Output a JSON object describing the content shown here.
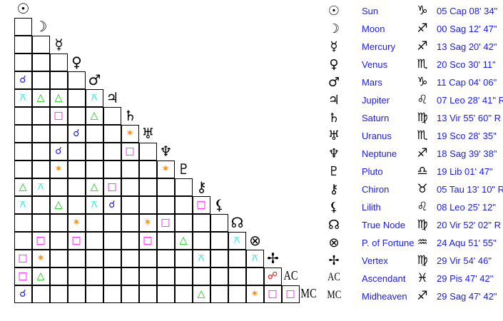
{
  "planets": [
    {
      "glyph": "☉",
      "name": "Sun",
      "sign": "♑",
      "position": "05 Cap 08' 34\""
    },
    {
      "glyph": "☽",
      "name": "Moon",
      "sign": "♐",
      "position": "00 Sag 12' 47\""
    },
    {
      "glyph": "☿",
      "name": "Mercury",
      "sign": "♐",
      "position": "13 Sag 20' 42\""
    },
    {
      "glyph": "♀",
      "name": "Venus",
      "sign": "♏",
      "position": "20 Sco 30' 11\""
    },
    {
      "glyph": "♂",
      "name": "Mars",
      "sign": "♑",
      "position": "11 Cap 04' 06\""
    },
    {
      "glyph": "♃",
      "name": "Jupiter",
      "sign": "♌",
      "position": "07 Leo 28' 41\" R"
    },
    {
      "glyph": "♄",
      "name": "Saturn",
      "sign": "♍",
      "position": "13 Vir 55' 60\" R"
    },
    {
      "glyph": "♅",
      "name": "Uranus",
      "sign": "♏",
      "position": "19 Sco 28' 35\""
    },
    {
      "glyph": "♆",
      "name": "Neptune",
      "sign": "♐",
      "position": "18 Sag 39' 38\""
    },
    {
      "glyph": "♇",
      "name": "Pluto",
      "sign": "♎",
      "position": "19 Lib 01' 47\""
    },
    {
      "glyph": "⚷",
      "name": "Chiron",
      "sign": "♉",
      "position": "05 Tau 13' 10\" R"
    },
    {
      "glyph": "⚸",
      "name": "Lilith",
      "sign": "♌",
      "position": "08 Leo 25' 12\""
    },
    {
      "glyph": "☊",
      "name": "True Node",
      "sign": "♍",
      "position": "20 Vir 52' 02\" R"
    },
    {
      "glyph": "⊗",
      "name": "P. of Fortune",
      "sign": "♒",
      "position": "24 Aqu 51' 55\""
    },
    {
      "glyph": "✢",
      "name": "Vertex",
      "sign": "♍",
      "position": "29 Vir 54' 46\""
    },
    {
      "glyph": "AC",
      "name": "Ascendant",
      "sign": "♓",
      "position": "29 Pis 47' 42\""
    },
    {
      "glyph": "MC",
      "name": "Midheaven",
      "sign": "♐",
      "position": "29 Sag 47' 42\""
    }
  ],
  "aspect_types": {
    "conjunction": {
      "glyph": "☌",
      "color": "#1a1aee"
    },
    "quincunx": {
      "glyph": "⚻",
      "color": "#00e5e5"
    },
    "trine": {
      "glyph": "△",
      "color": "#00cc00"
    },
    "square": {
      "glyph": "□",
      "color": "#ff00ff"
    },
    "sextile": {
      "glyph": "✶",
      "color": "#ff8800"
    },
    "opposition": {
      "glyph": "☍",
      "color": "#ff0000"
    }
  },
  "aspects": [
    [
      "Mars",
      "Sun",
      "conjunction"
    ],
    [
      "Jupiter",
      "Sun",
      "quincunx"
    ],
    [
      "Jupiter",
      "Moon",
      "trine"
    ],
    [
      "Jupiter",
      "Mercury",
      "trine"
    ],
    [
      "Jupiter",
      "Mars",
      "quincunx"
    ],
    [
      "Saturn",
      "Mercury",
      "square"
    ],
    [
      "Saturn",
      "Mars",
      "trine"
    ],
    [
      "Uranus",
      "Venus",
      "conjunction"
    ],
    [
      "Uranus",
      "Saturn",
      "sextile"
    ],
    [
      "Neptune",
      "Mercury",
      "conjunction"
    ],
    [
      "Neptune",
      "Saturn",
      "square"
    ],
    [
      "Pluto",
      "Mercury",
      "sextile"
    ],
    [
      "Pluto",
      "Neptune",
      "sextile"
    ],
    [
      "Chiron",
      "Sun",
      "trine"
    ],
    [
      "Chiron",
      "Moon",
      "quincunx"
    ],
    [
      "Chiron",
      "Mars",
      "trine"
    ],
    [
      "Chiron",
      "Jupiter",
      "square"
    ],
    [
      "Lilith",
      "Sun",
      "quincunx"
    ],
    [
      "Lilith",
      "Mercury",
      "trine"
    ],
    [
      "Lilith",
      "Mars",
      "quincunx"
    ],
    [
      "Lilith",
      "Jupiter",
      "conjunction"
    ],
    [
      "Lilith",
      "Chiron",
      "square"
    ],
    [
      "True Node",
      "Venus",
      "sextile"
    ],
    [
      "True Node",
      "Uranus",
      "sextile"
    ],
    [
      "True Node",
      "Neptune",
      "square"
    ],
    [
      "P. of Fortune",
      "Moon",
      "square"
    ],
    [
      "P. of Fortune",
      "Venus",
      "square"
    ],
    [
      "P. of Fortune",
      "Uranus",
      "square"
    ],
    [
      "P. of Fortune",
      "Pluto",
      "trine"
    ],
    [
      "P. of Fortune",
      "True Node",
      "quincunx"
    ],
    [
      "Vertex",
      "Sun",
      "square"
    ],
    [
      "Vertex",
      "Moon",
      "sextile"
    ],
    [
      "Vertex",
      "Chiron",
      "quincunx"
    ],
    [
      "Vertex",
      "P. of Fortune",
      "quincunx"
    ],
    [
      "Ascendant",
      "Sun",
      "square"
    ],
    [
      "Ascendant",
      "Moon",
      "trine"
    ],
    [
      "Ascendant",
      "Vertex",
      "opposition"
    ],
    [
      "Midheaven",
      "Sun",
      "conjunction"
    ],
    [
      "Midheaven",
      "Chiron",
      "trine"
    ],
    [
      "Midheaven",
      "P. of Fortune",
      "sextile"
    ],
    [
      "Midheaven",
      "Vertex",
      "square"
    ],
    [
      "Midheaven",
      "Ascendant",
      "square"
    ]
  ]
}
